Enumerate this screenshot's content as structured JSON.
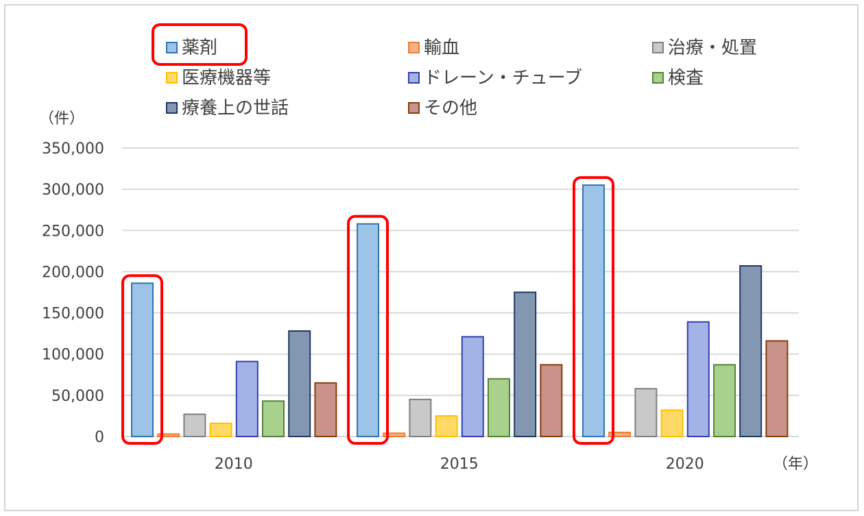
{
  "chart_data": {
    "type": "bar",
    "title": "",
    "ylabel": "（件）",
    "xlabel": "（年）",
    "ylim": [
      0,
      350000
    ],
    "yticks": [
      0,
      50000,
      100000,
      150000,
      200000,
      250000,
      300000,
      350000
    ],
    "ytick_labels": [
      "0",
      "50,000",
      "100,000",
      "150,000",
      "200,000",
      "250,000",
      "300,000",
      "350,000"
    ],
    "grid": true,
    "legend_position": "top",
    "categories": [
      "2010",
      "2015",
      "2020"
    ],
    "series": [
      {
        "name": "薬剤",
        "color": "#9dc3e6",
        "stroke": "#2e75b6",
        "values": [
          186000,
          258000,
          305000
        ]
      },
      {
        "name": "輸血",
        "color": "#f4b183",
        "stroke": "#ed7d31",
        "values": [
          3000,
          4000,
          5000
        ]
      },
      {
        "name": "治療・処置",
        "color": "#c9c9c9",
        "stroke": "#7f7f7f",
        "values": [
          27000,
          45000,
          58000
        ]
      },
      {
        "name": "医療機器等",
        "color": "#ffd966",
        "stroke": "#ffc000",
        "values": [
          16000,
          25000,
          32000
        ]
      },
      {
        "name": "ドレーン・チューブ",
        "color": "#a4b3e6",
        "stroke": "#2f3fb0",
        "values": [
          91000,
          121000,
          139000
        ]
      },
      {
        "name": "検査",
        "color": "#a9d18e",
        "stroke": "#548235",
        "values": [
          43000,
          70000,
          87000
        ]
      },
      {
        "name": "療養上の世話",
        "color": "#8497b0",
        "stroke": "#1f3864",
        "values": [
          128000,
          175000,
          207000
        ]
      },
      {
        "name": "その他",
        "color": "#c9938b",
        "stroke": "#843c0c",
        "values": [
          65000,
          87000,
          116000
        ]
      }
    ],
    "highlight": {
      "series": "薬剤",
      "color": "#ff0000"
    }
  }
}
